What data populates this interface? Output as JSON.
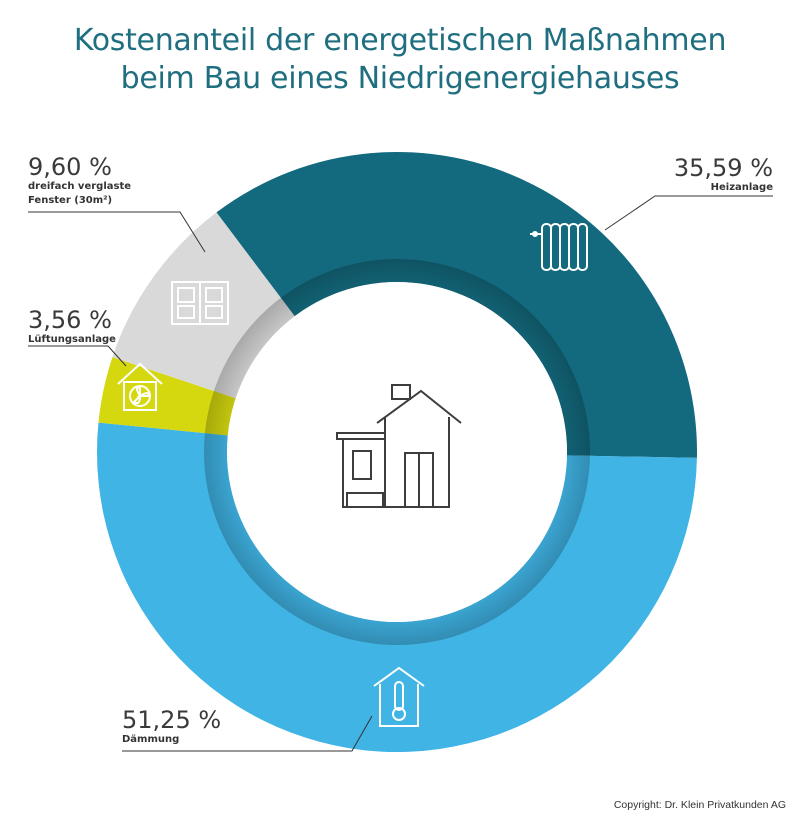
{
  "title_line1": "Kostenanteil der energetischen Maßnahmen",
  "title_line2": "beim Bau eines Niedrigenergiehauses",
  "copyright": "Copyright: Dr. Klein Privatkunden AG",
  "chart_data": {
    "type": "pie",
    "title": "Kostenanteil der energetischen Maßnahmen beim Bau eines Niedrigenergiehauses",
    "unit": "%",
    "slices": [
      {
        "label_line1": "Heizanlage",
        "label_line2": "",
        "value_text": "35,59 %",
        "value": 35.59,
        "color": "#136a7e",
        "icon": "radiator-icon"
      },
      {
        "label_line1": "Dämmung",
        "label_line2": "",
        "value_text": "51,25 %",
        "value": 51.25,
        "color": "#40b4e5",
        "icon": "thermometer-house-icon"
      },
      {
        "label_line1": "Lüftungsanlage",
        "label_line2": "",
        "value_text": "3,56 %",
        "value": 3.56,
        "color": "#d5d80f",
        "icon": "fan-house-icon"
      },
      {
        "label_line1": "dreifach verglaste",
        "label_line2": "Fenster (30m²)",
        "value_text": "9,60 %",
        "value": 9.6,
        "color": "#d9d9d9",
        "icon": "window-icon"
      }
    ],
    "center_icon": "house-icon",
    "legend": "none",
    "grid": false
  }
}
